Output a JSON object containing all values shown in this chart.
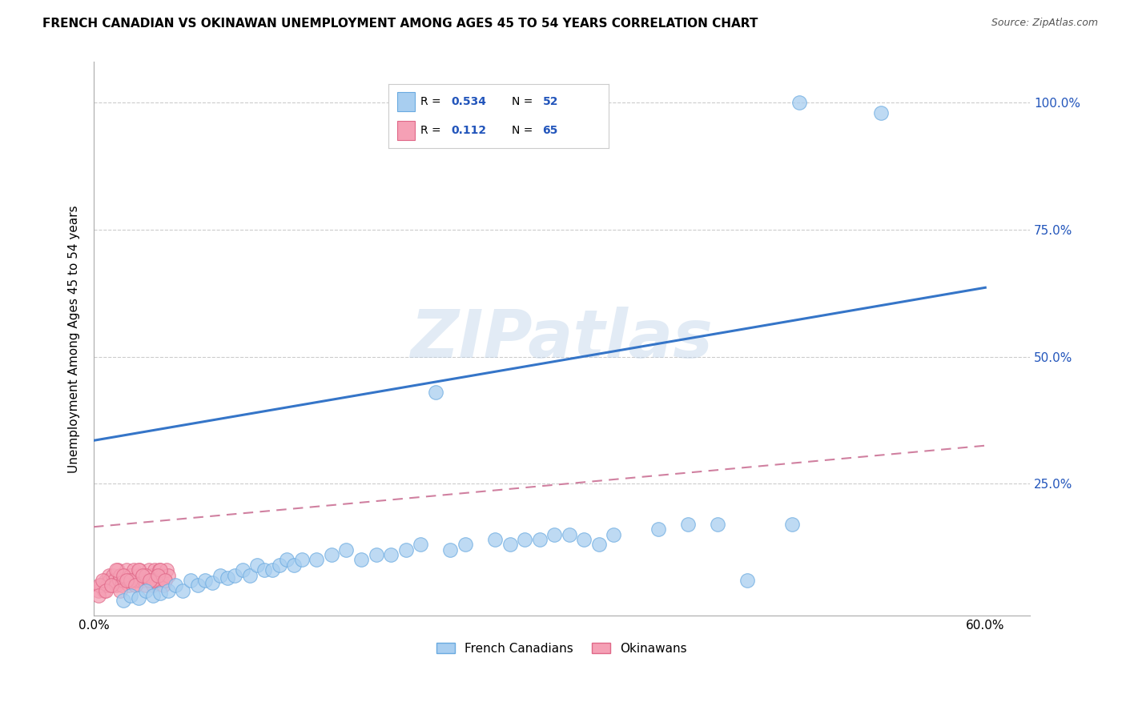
{
  "title": "FRENCH CANADIAN VS OKINAWAN UNEMPLOYMENT AMONG AGES 45 TO 54 YEARS CORRELATION CHART",
  "source": "Source: ZipAtlas.com",
  "ylabel": "Unemployment Among Ages 45 to 54 years",
  "xlim": [
    0.0,
    0.63
  ],
  "ylim": [
    -0.01,
    1.08
  ],
  "fc_color": "#a8cef0",
  "ok_color": "#f5a0b5",
  "fc_edge": "#6aaae0",
  "ok_edge": "#e06888",
  "fc_R": 0.534,
  "fc_N": 52,
  "ok_R": 0.112,
  "ok_N": 65,
  "watermark_text": "ZIPatlas",
  "fc_line_color": "#3575c8",
  "ok_line_color": "#d080a0",
  "grid_color": "#cccccc",
  "fc_line_x0": 0.0,
  "fc_line_y0": 0.335,
  "fc_line_x1": 0.6,
  "fc_line_y1": 0.636,
  "ok_line_x0": 0.0,
  "ok_line_y0": 0.165,
  "ok_line_x1": 0.6,
  "ok_line_y1": 0.325,
  "fc_x": [
    0.02,
    0.025,
    0.03,
    0.035,
    0.04,
    0.045,
    0.05,
    0.055,
    0.06,
    0.065,
    0.07,
    0.075,
    0.08,
    0.085,
    0.09,
    0.095,
    0.1,
    0.105,
    0.11,
    0.115,
    0.12,
    0.125,
    0.13,
    0.135,
    0.14,
    0.15,
    0.16,
    0.17,
    0.18,
    0.19,
    0.2,
    0.21,
    0.22,
    0.23,
    0.24,
    0.25,
    0.27,
    0.28,
    0.29,
    0.3,
    0.31,
    0.32,
    0.33,
    0.34,
    0.35,
    0.38,
    0.4,
    0.42,
    0.44,
    0.47,
    0.475,
    0.53
  ],
  "fc_y": [
    0.02,
    0.03,
    0.025,
    0.04,
    0.03,
    0.035,
    0.04,
    0.05,
    0.04,
    0.06,
    0.05,
    0.06,
    0.055,
    0.07,
    0.065,
    0.07,
    0.08,
    0.07,
    0.09,
    0.08,
    0.08,
    0.09,
    0.1,
    0.09,
    0.1,
    0.1,
    0.11,
    0.12,
    0.1,
    0.11,
    0.11,
    0.12,
    0.13,
    0.43,
    0.12,
    0.13,
    0.14,
    0.13,
    0.14,
    0.14,
    0.15,
    0.15,
    0.14,
    0.13,
    0.15,
    0.16,
    0.17,
    0.17,
    0.06,
    0.17,
    1.0,
    0.98
  ],
  "ok_x": [
    0.003,
    0.005,
    0.007,
    0.008,
    0.009,
    0.01,
    0.011,
    0.012,
    0.013,
    0.014,
    0.015,
    0.016,
    0.017,
    0.018,
    0.019,
    0.02,
    0.021,
    0.022,
    0.023,
    0.024,
    0.025,
    0.026,
    0.027,
    0.028,
    0.029,
    0.03,
    0.031,
    0.032,
    0.033,
    0.034,
    0.035,
    0.036,
    0.037,
    0.038,
    0.039,
    0.04,
    0.041,
    0.042,
    0.043,
    0.044,
    0.045,
    0.046,
    0.047,
    0.048,
    0.049,
    0.05,
    0.004,
    0.006,
    0.015,
    0.02,
    0.025,
    0.03,
    0.035,
    0.04,
    0.045,
    0.003,
    0.008,
    0.012,
    0.018,
    0.022,
    0.028,
    0.033,
    0.038,
    0.043,
    0.048
  ],
  "ok_y": [
    0.04,
    0.05,
    0.04,
    0.06,
    0.05,
    0.07,
    0.06,
    0.05,
    0.07,
    0.06,
    0.05,
    0.08,
    0.06,
    0.07,
    0.05,
    0.06,
    0.07,
    0.08,
    0.06,
    0.05,
    0.07,
    0.06,
    0.08,
    0.05,
    0.06,
    0.07,
    0.08,
    0.06,
    0.07,
    0.06,
    0.05,
    0.07,
    0.08,
    0.06,
    0.07,
    0.05,
    0.08,
    0.06,
    0.07,
    0.08,
    0.06,
    0.07,
    0.05,
    0.06,
    0.08,
    0.07,
    0.05,
    0.06,
    0.08,
    0.07,
    0.06,
    0.08,
    0.07,
    0.06,
    0.08,
    0.03,
    0.04,
    0.05,
    0.04,
    0.06,
    0.05,
    0.07,
    0.06,
    0.07,
    0.06
  ]
}
